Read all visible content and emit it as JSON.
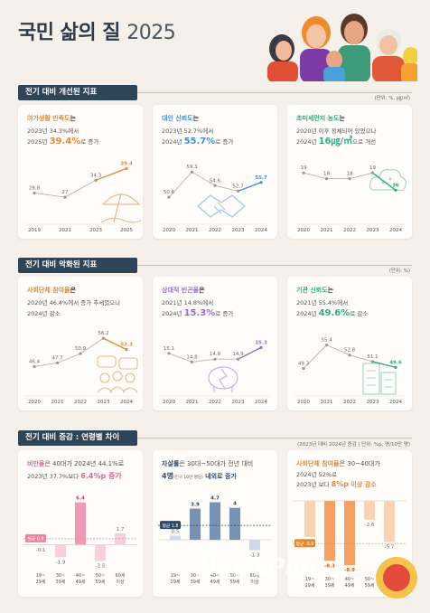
{
  "header": {
    "title_main": "국민 삶의 질",
    "title_year": "2025"
  },
  "section1": {
    "title": "전기 대비 개선된 지표",
    "unit": "(단위: %, ㎍/㎥)"
  },
  "section2": {
    "title": "전기 대비 악화된 지표",
    "unit": "(단위: %)"
  },
  "section3": {
    "title": "전기 대비 증감 : 연령별 차이",
    "unit": "(2023년 대비 2024년 증감 | 단위: %p, 명/10만 명)"
  },
  "cards": [
    {
      "h1": "여가생활 만족도",
      "h2": "는",
      "d1": "2023년 34.3%에서",
      "d2a": "2025년 ",
      "d2b": "39.4%",
      "d2c": "로 증가",
      "accent": "#e2893a"
    },
    {
      "h1": "대인 신뢰도",
      "h2": "는",
      "d1": "2023년 52.7%에서",
      "d2a": "2024년 ",
      "d2b": "55.7%",
      "d2c": "로 증가",
      "accent": "#3f8fd4"
    },
    {
      "h1": "초미세먼지 농도",
      "h2": "는",
      "d1": "2020년 이후 정체되어 있었으나",
      "d2a": "2024년 ",
      "d2b": "16㎍/㎥",
      "d2c": "으로 개선",
      "accent": "#34a783"
    },
    {
      "h1": "사회단체 참여율",
      "h2": "은",
      "d1": "2020년 46.4%에서 증가 추세였으나",
      "d2a": "2024년 감소",
      "d2b": "",
      "d2c": "",
      "accent": "#e2893a"
    },
    {
      "h1": "상대적 빈곤율",
      "h2": "은",
      "d1": "2021년 14.8%에서",
      "d2a": "2024년 ",
      "d2b": "15.3%",
      "d2c": "로 증가",
      "accent": "#9b6ad1"
    },
    {
      "h1": "기관 신뢰도",
      "h2": "는",
      "d1": "2021년 55.4%에서",
      "d2a": "2024년 ",
      "d2b": "49.6%",
      "d2c": "로 감소",
      "accent": "#34a783"
    },
    {
      "h1": "비만율",
      "h2": "은 40대가 2024년 44.1%로",
      "d1": "2023년 37.7%보다 ",
      "d1b": "6.4%p 증가",
      "accent": "#e0649a"
    },
    {
      "h1": "자살률",
      "h2": "은 30대~50대가 전년 대비",
      "d1a": "4명",
      "d1s": "(인구 10만 명당)",
      "d1b": " 내외로 증가",
      "accent": "#2e4a66"
    },
    {
      "h1": "사회단체 참여율",
      "h2": "은 30~40대가",
      "d1": "2024년 52%로",
      "d1c": "2023년 보다 ",
      "d1b": "8%p",
      "d1d": " 이상 감소",
      "accent": "#e2893a"
    }
  ],
  "chart_data": [
    {
      "type": "line",
      "x": [
        "2019",
        "2021",
        "2023",
        "2025"
      ],
      "series": [
        {
          "values": [
            28.8,
            27.0,
            34.3,
            39.4
          ]
        }
      ],
      "ylim": [
        20,
        45
      ]
    },
    {
      "type": "line",
      "x": [
        "2020",
        "2021",
        "2022",
        "2023",
        "2024"
      ],
      "series": [
        {
          "values": [
            50.6,
            59.3,
            54.6,
            52.7,
            55.7
          ]
        }
      ],
      "ylim": [
        45,
        65
      ]
    },
    {
      "type": "line",
      "x": [
        "2020",
        "2021",
        "2022",
        "2023",
        "2024"
      ],
      "series": [
        {
          "values": [
            19,
            18,
            18,
            19,
            16
          ]
        }
      ],
      "ylim": [
        12,
        22
      ]
    },
    {
      "type": "line",
      "x": [
        "2020",
        "2021",
        "2022",
        "2023",
        "2024"
      ],
      "series": [
        {
          "values": [
            46.4,
            47.7,
            50.9,
            56.2,
            52.3
          ]
        }
      ],
      "ylim": [
        40,
        60
      ]
    },
    {
      "type": "line",
      "x": [
        "2020",
        "2021",
        "2022",
        "2023",
        "2024"
      ],
      "series": [
        {
          "values": [
            15.1,
            14.8,
            14.9,
            14.9,
            15.3
          ]
        }
      ],
      "ylim": [
        14,
        16
      ]
    },
    {
      "type": "line",
      "x": [
        "2020",
        "2021",
        "2022",
        "2023",
        "2024"
      ],
      "series": [
        {
          "values": [
            49.3,
            55.4,
            52.8,
            51.1,
            49.6
          ]
        }
      ],
      "ylim": [
        45,
        60
      ]
    },
    {
      "type": "bar",
      "categories": [
        "19~\n29세",
        "30~\n39세",
        "40~\n49세",
        "50~\n59세",
        "60세\n이상"
      ],
      "values": [
        -0.1,
        -1.9,
        6.4,
        -2.5,
        1.7
      ],
      "avg": 0.9,
      "avg_label": "평균 0.9",
      "ylim": [
        -3.5,
        8
      ]
    },
    {
      "type": "bar",
      "categories": [
        "19~\n29세",
        "30~\n39세",
        "40~\n49세",
        "50~\n59세",
        "60세\n이상"
      ],
      "values": [
        0.5,
        3.9,
        4.7,
        4.0,
        -1.3
      ],
      "avg": 1.8,
      "avg_label": "평균 1.8",
      "ylim": [
        -3.5,
        6
      ]
    },
    {
      "type": "bar",
      "categories": [
        "19~\n29세",
        "30~\n39세",
        "40~\n49세",
        "50~\n59세",
        "60세\n이상"
      ],
      "values": [
        -5.0,
        -8.3,
        -8.9,
        -2.6,
        -5.7
      ],
      "avg": -5.9,
      "avg_label": "평균 -5.9",
      "ylim": [
        -10,
        1
      ]
    }
  ],
  "watermark": {
    "main": "NewsPim",
    "sub": "뉴스핌"
  }
}
